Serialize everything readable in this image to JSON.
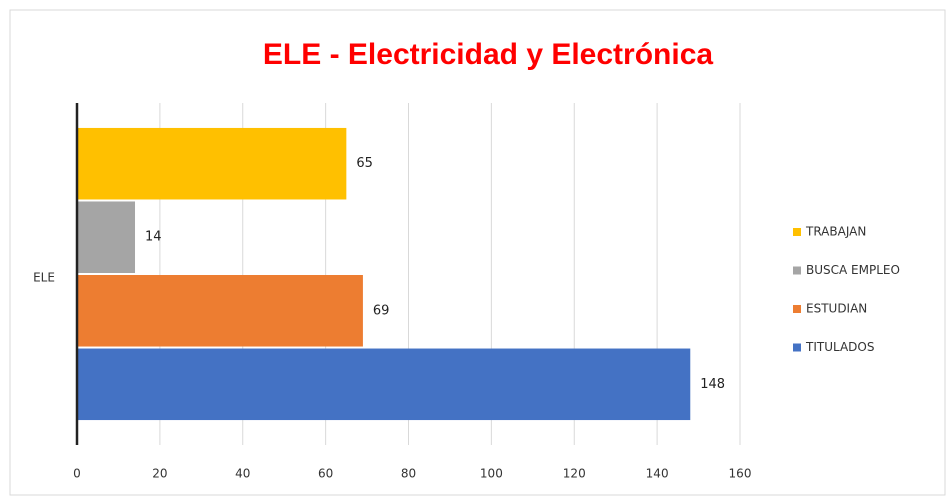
{
  "chart_data": {
    "type": "hbar",
    "title": "ELE - Electricidad y Electrónica",
    "categories": [
      "ELE"
    ],
    "series": [
      {
        "name": "TRABAJAN",
        "color": "#ffc000",
        "values": [
          65
        ]
      },
      {
        "name": "BUSCA EMPLEO",
        "color": "#a5a5a5",
        "values": [
          14
        ]
      },
      {
        "name": "ESTUDIAN",
        "color": "#ed7d31",
        "values": [
          69
        ]
      },
      {
        "name": "TITULADOS",
        "color": "#4472c4",
        "values": [
          148
        ]
      }
    ],
    "xlim": [
      0,
      160
    ],
    "xticks": [
      0,
      20,
      40,
      60,
      80,
      100,
      120,
      140,
      160
    ],
    "grid": true,
    "legend": "right"
  }
}
